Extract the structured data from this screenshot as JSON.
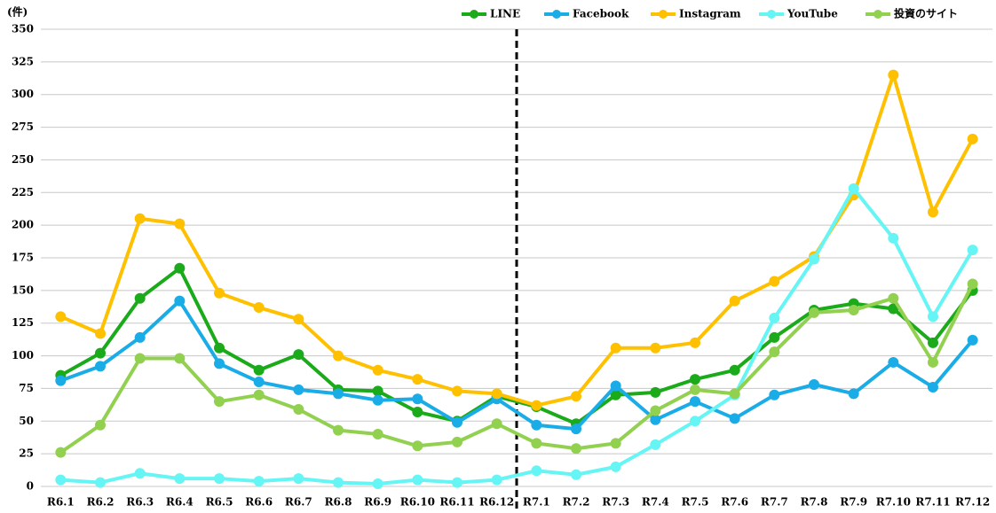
{
  "chart_data": {
    "type": "line",
    "ylabel": "(件)",
    "categories": [
      "R6.1",
      "R6.2",
      "R6.3",
      "R6.4",
      "R6.5",
      "R6.6",
      "R6.7",
      "R6.8",
      "R6.9",
      "R6.10",
      "R6.11",
      "R6.12",
      "R7.1",
      "R7.2",
      "R7.3",
      "R7.4",
      "R7.5",
      "R7.6",
      "R7.7",
      "R7.8",
      "R7.9",
      "R7.10",
      "R7.11",
      "R7.12"
    ],
    "series": [
      {
        "name": "LINE",
        "color": "#1aaa1a",
        "values": [
          85,
          102,
          144,
          167,
          106,
          89,
          101,
          74,
          73,
          57,
          50,
          69,
          61,
          48,
          70,
          72,
          82,
          89,
          114,
          135,
          140,
          136,
          110,
          150
        ]
      },
      {
        "name": "Facebook",
        "color": "#1aace6",
        "values": [
          81,
          92,
          114,
          142,
          94,
          80,
          74,
          71,
          66,
          67,
          49,
          67,
          47,
          44,
          77,
          51,
          65,
          52,
          70,
          78,
          71,
          95,
          76,
          112
        ]
      },
      {
        "name": "Instagram",
        "color": "#ffc000",
        "values": [
          130,
          117,
          205,
          201,
          148,
          137,
          128,
          100,
          89,
          82,
          73,
          71,
          62,
          69,
          106,
          106,
          110,
          142,
          157,
          176,
          223,
          315,
          210,
          266
        ]
      },
      {
        "name": "YouTube",
        "color": "#66f5f5",
        "values": [
          5,
          3,
          10,
          6,
          6,
          4,
          6,
          3,
          2,
          5,
          3,
          5,
          12,
          9,
          15,
          32,
          50,
          70,
          129,
          174,
          228,
          190,
          130,
          181
        ]
      },
      {
        "name": "投資のサイト",
        "color": "#92d050",
        "values": [
          26,
          47,
          98,
          98,
          65,
          70,
          59,
          43,
          40,
          31,
          34,
          48,
          33,
          29,
          33,
          58,
          74,
          71,
          103,
          133,
          135,
          144,
          95,
          155
        ]
      }
    ],
    "ylim": [
      0,
      350
    ],
    "yticks": [
      0,
      25,
      50,
      75,
      100,
      125,
      150,
      175,
      200,
      225,
      250,
      275,
      300,
      325,
      350
    ],
    "grid": true,
    "legend": "top"
  }
}
